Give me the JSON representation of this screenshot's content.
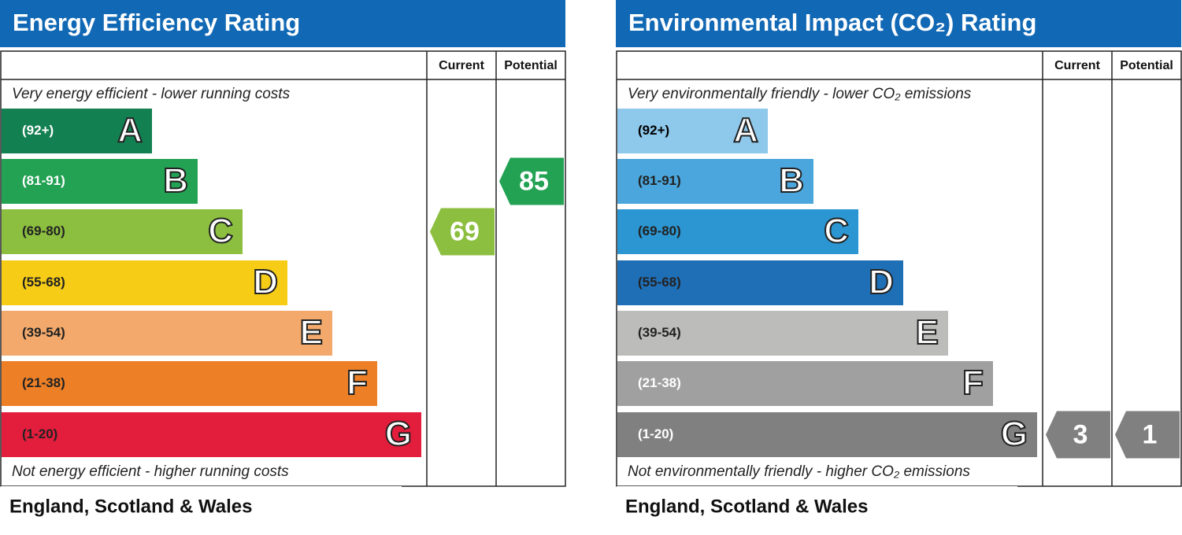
{
  "panels": [
    {
      "title": "Energy Efficiency Rating",
      "columns": [
        "Current",
        "Potential"
      ],
      "top_note": "Very energy efficient - lower running costs",
      "bottom_note": "Not energy efficient - higher running costs",
      "footer": "England, Scotland & Wales",
      "bands": [
        {
          "range": "(92+)",
          "letter": "A",
          "color": "#138052",
          "text_color": "#ffffff"
        },
        {
          "range": "(81-91)",
          "letter": "B",
          "color": "#23a254",
          "text_color": "#ffffff"
        },
        {
          "range": "(69-80)",
          "letter": "C",
          "color": "#8cbf40",
          "text_color": "#222222"
        },
        {
          "range": "(55-68)",
          "letter": "D",
          "color": "#f6cc16",
          "text_color": "#222222"
        },
        {
          "range": "(39-54)",
          "letter": "E",
          "color": "#f2a96b",
          "text_color": "#222222"
        },
        {
          "range": "(21-38)",
          "letter": "F",
          "color": "#ed8027",
          "text_color": "#222222"
        },
        {
          "range": "(1-20)",
          "letter": "G",
          "color": "#e31d3c",
          "text_color": "#222222"
        }
      ],
      "current": 69,
      "potential": 85
    },
    {
      "title": "Environmental Impact (CO₂) Rating",
      "columns": [
        "Current",
        "Potential"
      ],
      "top_note": "Very environmentally friendly - lower CO₂ emissions",
      "bottom_note": "Not environmentally friendly - higher CO₂ emissions",
      "footer": "England, Scotland & Wales",
      "bands": [
        {
          "range": "(92+)",
          "letter": "A",
          "color": "#8ec8ea",
          "text_color": "#000000"
        },
        {
          "range": "(81-91)",
          "letter": "B",
          "color": "#4aa6dc",
          "text_color": "#222222"
        },
        {
          "range": "(69-80)",
          "letter": "C",
          "color": "#2b96d1",
          "text_color": "#222222"
        },
        {
          "range": "(55-68)",
          "letter": "D",
          "color": "#1f6fb7",
          "text_color": "#222222"
        },
        {
          "range": "(39-54)",
          "letter": "E",
          "color": "#bcbcbb",
          "text_color": "#222222"
        },
        {
          "range": "(21-38)",
          "letter": "F",
          "color": "#a0a0a0",
          "text_color": "#ffffff"
        },
        {
          "range": "(1-20)",
          "letter": "G",
          "color": "#808080",
          "text_color": "#ffffff"
        }
      ],
      "current": 3,
      "potential": 1
    }
  ]
}
